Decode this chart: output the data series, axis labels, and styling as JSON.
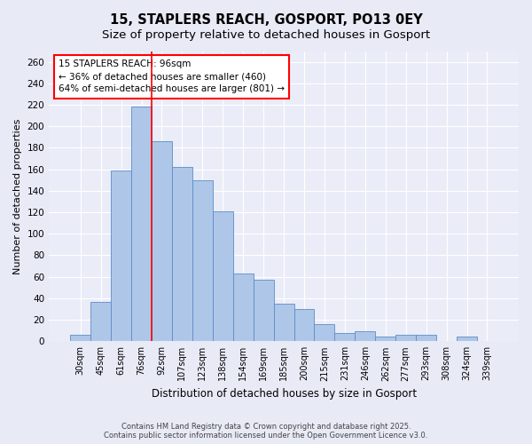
{
  "title_line1": "15, STAPLERS REACH, GOSPORT, PO13 0EY",
  "title_line2": "Size of property relative to detached houses in Gosport",
  "xlabel": "Distribution of detached houses by size in Gosport",
  "ylabel": "Number of detached properties",
  "footer": "Contains HM Land Registry data © Crown copyright and database right 2025.\nContains public sector information licensed under the Open Government Licence v3.0.",
  "categories": [
    "30sqm",
    "45sqm",
    "61sqm",
    "76sqm",
    "92sqm",
    "107sqm",
    "123sqm",
    "138sqm",
    "154sqm",
    "169sqm",
    "185sqm",
    "200sqm",
    "215sqm",
    "231sqm",
    "246sqm",
    "262sqm",
    "277sqm",
    "293sqm",
    "308sqm",
    "324sqm",
    "339sqm"
  ],
  "values": [
    6,
    37,
    159,
    218,
    186,
    162,
    150,
    121,
    63,
    57,
    35,
    30,
    16,
    8,
    9,
    4,
    6,
    6,
    0,
    4,
    0
  ],
  "bar_color": "#aec6e8",
  "bar_edge_color": "#5b8dc8",
  "vline_x_index": 4,
  "vline_color": "red",
  "annotation_box_text": "15 STAPLERS REACH: 96sqm\n← 36% of detached houses are smaller (460)\n64% of semi-detached houses are larger (801) →",
  "ylim": [
    0,
    270
  ],
  "yticks": [
    0,
    20,
    40,
    60,
    80,
    100,
    120,
    140,
    160,
    180,
    200,
    220,
    240,
    260
  ],
  "background_color": "#e8eaf6",
  "plot_bg_color": "#eaecf8",
  "grid_color": "white",
  "title_fontsize": 10.5,
  "subtitle_fontsize": 9.5,
  "annotation_fontsize": 7.5,
  "footer_fontsize": 6.0
}
